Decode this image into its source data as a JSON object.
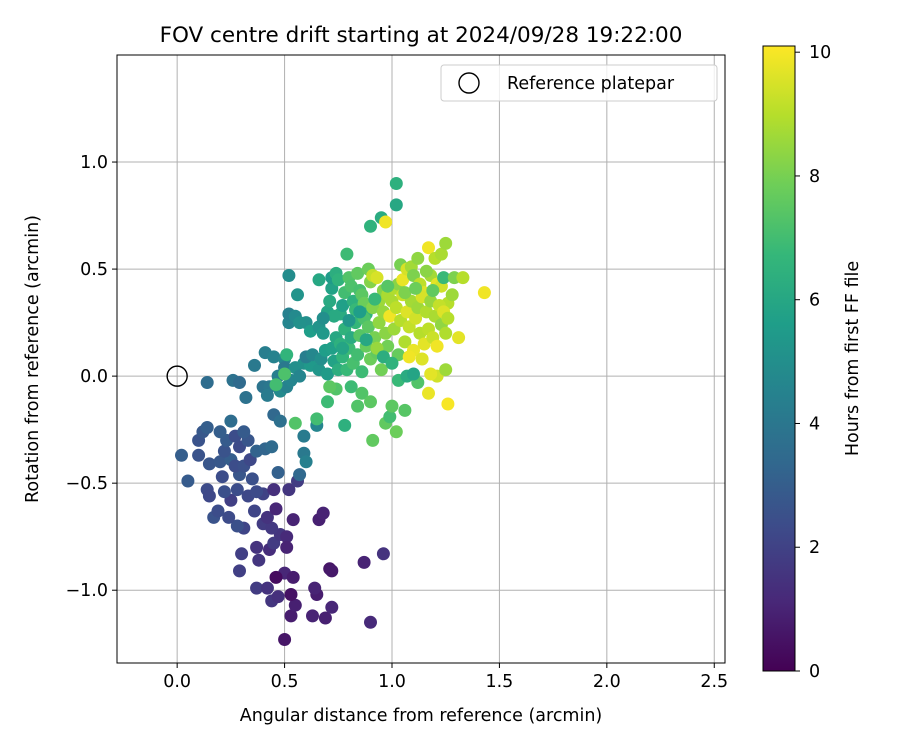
{
  "chart_data": {
    "type": "scatter",
    "title": "FOV centre drift starting at 2024/09/28 19:22:00",
    "xlabel": "Angular distance from reference (arcmin)",
    "ylabel": "Rotation from reference (arcmin)",
    "xlim": [
      -0.28,
      2.55
    ],
    "ylim": [
      -1.34,
      1.5
    ],
    "x_ticks": [
      0.0,
      0.5,
      1.0,
      1.5,
      2.0,
      2.5
    ],
    "x_tick_labels": [
      "0.0",
      "0.5",
      "1.0",
      "1.5",
      "2.0",
      "2.5"
    ],
    "y_ticks": [
      -1.0,
      -0.5,
      0.0,
      0.5,
      1.0
    ],
    "y_tick_labels": [
      "−1.0",
      "−0.5",
      "0.0",
      "0.5",
      "1.0"
    ],
    "grid": true,
    "legend": {
      "position": "top-right",
      "entries": [
        {
          "label": "Reference platepar",
          "marker": "open-circle"
        }
      ]
    },
    "reference_point": {
      "x": 0.0,
      "y": 0.0
    },
    "colorbar": {
      "label": "Hours from first FF file",
      "colormap": "viridis",
      "range": [
        0,
        10.1
      ],
      "ticks": [
        0,
        2,
        4,
        6,
        8,
        10
      ],
      "tick_labels": [
        "0",
        "2",
        "4",
        "6",
        "8",
        "10"
      ]
    },
    "points": [
      [
        0.5,
        -1.23,
        0.6
      ],
      [
        0.53,
        -1.12,
        0.8
      ],
      [
        0.63,
        -1.12,
        1.0
      ],
      [
        0.69,
        -1.13,
        0.9
      ],
      [
        0.9,
        -1.15,
        1.2
      ],
      [
        0.72,
        -1.08,
        1.1
      ],
      [
        0.55,
        -1.07,
        0.9
      ],
      [
        0.44,
        -1.05,
        1.6
      ],
      [
        0.47,
        -1.03,
        1.4
      ],
      [
        0.53,
        -1.02,
        0.5
      ],
      [
        0.65,
        -1.02,
        0.8
      ],
      [
        0.64,
        -0.99,
        1.0
      ],
      [
        0.37,
        -0.99,
        1.8
      ],
      [
        0.42,
        -0.99,
        1.5
      ],
      [
        0.29,
        -0.91,
        1.9
      ],
      [
        0.5,
        -0.92,
        1.1
      ],
      [
        0.46,
        -0.94,
        0.3
      ],
      [
        0.54,
        -0.94,
        0.8
      ],
      [
        0.71,
        -0.9,
        0.6
      ],
      [
        0.72,
        -0.91,
        0.7
      ],
      [
        0.87,
        -0.87,
        1.0
      ],
      [
        0.96,
        -0.83,
        1.5
      ],
      [
        0.3,
        -0.83,
        1.9
      ],
      [
        0.38,
        -0.86,
        1.6
      ],
      [
        0.43,
        -0.81,
        1.3
      ],
      [
        0.37,
        -0.8,
        1.5
      ],
      [
        0.45,
        -0.78,
        1.8
      ],
      [
        0.48,
        -0.74,
        1.6
      ],
      [
        0.51,
        -0.75,
        1.2
      ],
      [
        0.51,
        -0.8,
        1.0
      ],
      [
        0.31,
        -0.71,
        2.1
      ],
      [
        0.28,
        -0.7,
        2.5
      ],
      [
        0.24,
        -0.66,
        2.3
      ],
      [
        0.17,
        -0.66,
        2.6
      ],
      [
        0.19,
        -0.63,
        2.4
      ],
      [
        0.36,
        -0.63,
        2.1
      ],
      [
        0.4,
        -0.69,
        1.8
      ],
      [
        0.44,
        -0.71,
        1.7
      ],
      [
        0.42,
        -0.66,
        1.5
      ],
      [
        0.46,
        -0.62,
        1.1
      ],
      [
        0.54,
        -0.67,
        1.0
      ],
      [
        0.66,
        -0.67,
        0.9
      ],
      [
        0.68,
        -0.64,
        1.0
      ],
      [
        0.25,
        -0.58,
        1.9
      ],
      [
        0.14,
        -0.53,
        2.3
      ],
      [
        0.15,
        -0.56,
        2.2
      ],
      [
        0.22,
        -0.54,
        2.5
      ],
      [
        0.28,
        -0.53,
        2.4
      ],
      [
        0.33,
        -0.56,
        2.2
      ],
      [
        0.4,
        -0.55,
        2.0
      ],
      [
        0.37,
        -0.54,
        2.3
      ],
      [
        0.45,
        -0.53,
        1.4
      ],
      [
        0.52,
        -0.53,
        1.6
      ],
      [
        0.56,
        -0.49,
        1.8
      ],
      [
        0.05,
        -0.49,
        2.9
      ],
      [
        0.21,
        -0.47,
        2.4
      ],
      [
        0.29,
        -0.46,
        2.7
      ],
      [
        0.35,
        -0.48,
        2.5
      ],
      [
        0.47,
        -0.45,
        3.1
      ],
      [
        0.57,
        -0.46,
        3.4
      ],
      [
        0.02,
        -0.37,
        3.0
      ],
      [
        0.1,
        -0.37,
        2.6
      ],
      [
        0.15,
        -0.41,
        2.7
      ],
      [
        0.2,
        -0.4,
        2.8
      ],
      [
        0.25,
        -0.39,
        3.0
      ],
      [
        0.27,
        -0.42,
        2.4
      ],
      [
        0.31,
        -0.42,
        2.5
      ],
      [
        0.34,
        -0.39,
        2.2
      ],
      [
        0.22,
        -0.35,
        2.6
      ],
      [
        0.23,
        -0.3,
        2.9
      ],
      [
        0.29,
        -0.33,
        2.3
      ],
      [
        0.33,
        -0.3,
        2.7
      ],
      [
        0.37,
        -0.35,
        3.2
      ],
      [
        0.41,
        -0.34,
        3.3
      ],
      [
        0.44,
        -0.33,
        3.5
      ],
      [
        0.1,
        -0.3,
        2.6
      ],
      [
        0.12,
        -0.26,
        2.8
      ],
      [
        0.14,
        -0.24,
        3.0
      ],
      [
        0.2,
        -0.26,
        3.0
      ],
      [
        0.25,
        -0.21,
        3.6
      ],
      [
        0.27,
        -0.28,
        2.4
      ],
      [
        0.31,
        -0.26,
        2.9
      ],
      [
        0.45,
        -0.18,
        3.4
      ],
      [
        0.48,
        -0.21,
        3.7
      ],
      [
        0.59,
        -0.28,
        4.2
      ],
      [
        0.59,
        -0.36,
        4.1
      ],
      [
        0.6,
        -0.4,
        4.4
      ],
      [
        0.65,
        -0.23,
        4.6
      ],
      [
        0.14,
        -0.03,
        3.6
      ],
      [
        0.26,
        -0.02,
        3.8
      ],
      [
        0.29,
        -0.03,
        3.5
      ],
      [
        0.32,
        -0.1,
        3.8
      ],
      [
        0.36,
        0.05,
        4.1
      ],
      [
        0.41,
        0.11,
        4.3
      ],
      [
        0.4,
        -0.05,
        3.9
      ],
      [
        0.43,
        -0.05,
        4.0
      ],
      [
        0.42,
        -0.09,
        4.2
      ],
      [
        0.47,
        0.0,
        4.3
      ],
      [
        0.45,
        0.09,
        4.5
      ],
      [
        0.5,
        0.08,
        4.7
      ],
      [
        0.5,
        0.04,
        4.1
      ],
      [
        0.48,
        -0.07,
        4.8
      ],
      [
        0.51,
        -0.05,
        4.5
      ],
      [
        0.53,
        -0.02,
        4.6
      ],
      [
        0.55,
        0.04,
        5.0
      ],
      [
        0.59,
        0.06,
        5.1
      ],
      [
        0.57,
        0.0,
        4.6
      ],
      [
        0.62,
        0.05,
        5.4
      ],
      [
        0.46,
        -0.04,
        7.0
      ],
      [
        0.51,
        0.1,
        6.6
      ],
      [
        0.5,
        0.01,
        7.2
      ],
      [
        0.55,
        -0.22,
        7.3
      ],
      [
        0.65,
        -0.2,
        7.0
      ],
      [
        0.7,
        -0.12,
        6.9
      ],
      [
        0.74,
        -0.06,
        7.3
      ],
      [
        0.71,
        -0.05,
        7.5
      ],
      [
        0.78,
        -0.23,
        6.4
      ],
      [
        0.81,
        -0.05,
        6.9
      ],
      [
        0.86,
        -0.08,
        7.3
      ],
      [
        0.9,
        -0.12,
        7.5
      ],
      [
        0.84,
        -0.14,
        7.3
      ],
      [
        0.91,
        -0.3,
        7.6
      ],
      [
        0.97,
        -0.22,
        7.6
      ],
      [
        0.99,
        -0.19,
        7.0
      ],
      [
        1.0,
        -0.14,
        7.5
      ],
      [
        1.02,
        -0.26,
        7.8
      ],
      [
        1.06,
        -0.16,
        7.4
      ],
      [
        1.12,
        -0.03,
        7.3
      ],
      [
        1.03,
        -0.02,
        6.8
      ],
      [
        1.07,
        0.0,
        6.2
      ],
      [
        1.1,
        0.01,
        5.9
      ],
      [
        1.17,
        -0.08,
        9.8
      ],
      [
        1.26,
        -0.13,
        10.0
      ],
      [
        1.21,
        0.0,
        9.4
      ],
      [
        1.18,
        0.01,
        9.7
      ],
      [
        1.25,
        0.03,
        8.6
      ],
      [
        0.52,
        0.25,
        4.6
      ],
      [
        0.52,
        0.29,
        4.4
      ],
      [
        0.55,
        0.28,
        4.8
      ],
      [
        0.56,
        0.38,
        5.2
      ],
      [
        0.52,
        0.47,
        4.9
      ],
      [
        0.6,
        0.25,
        5.0
      ],
      [
        0.62,
        0.21,
        5.6
      ],
      [
        0.66,
        0.45,
        6.0
      ],
      [
        0.66,
        0.23,
        5.2
      ],
      [
        0.68,
        0.2,
        5.4
      ],
      [
        0.7,
        0.3,
        5.9
      ],
      [
        0.71,
        0.35,
        6.1
      ],
      [
        0.72,
        0.41,
        5.8
      ],
      [
        0.72,
        0.46,
        5.5
      ],
      [
        0.74,
        0.48,
        6.3
      ],
      [
        0.75,
        0.45,
        6.5
      ],
      [
        0.76,
        0.29,
        6.2
      ],
      [
        0.77,
        0.33,
        5.7
      ],
      [
        0.78,
        0.39,
        7.0
      ],
      [
        0.79,
        0.57,
        6.9
      ],
      [
        0.8,
        0.46,
        7.3
      ],
      [
        0.81,
        0.42,
        7.2
      ],
      [
        0.82,
        0.35,
        6.4
      ],
      [
        0.83,
        0.31,
        6.8
      ],
      [
        0.84,
        0.48,
        7.6
      ],
      [
        0.85,
        0.4,
        7.1
      ],
      [
        0.86,
        0.38,
        7.5
      ],
      [
        0.87,
        0.34,
        7.8
      ],
      [
        0.88,
        0.29,
        6.6
      ],
      [
        0.89,
        0.5,
        7.8
      ],
      [
        0.9,
        0.44,
        8.2
      ],
      [
        0.9,
        0.7,
        6.5
      ],
      [
        0.91,
        0.47,
        9.2
      ],
      [
        0.93,
        0.46,
        9.5
      ],
      [
        0.95,
        0.74,
        6.2
      ],
      [
        0.97,
        0.72,
        9.9
      ],
      [
        0.94,
        0.35,
        8.6
      ],
      [
        0.96,
        0.4,
        8.2
      ],
      [
        0.98,
        0.38,
        8.8
      ],
      [
        1.01,
        0.41,
        8.9
      ],
      [
        1.03,
        0.43,
        8.3
      ],
      [
        1.04,
        0.52,
        8.0
      ],
      [
        1.05,
        0.45,
        9.8
      ],
      [
        1.07,
        0.5,
        9.5
      ],
      [
        1.09,
        0.51,
        8.7
      ],
      [
        1.1,
        0.47,
        8.1
      ],
      [
        1.12,
        0.55,
        8.4
      ],
      [
        1.13,
        0.43,
        9.1
      ],
      [
        1.15,
        0.39,
        9.6
      ],
      [
        1.17,
        0.6,
        9.9
      ],
      [
        1.18,
        0.47,
        8.7
      ],
      [
        1.2,
        0.55,
        9.0
      ],
      [
        1.21,
        0.43,
        9.7
      ],
      [
        1.23,
        0.42,
        9.4
      ],
      [
        1.23,
        0.57,
        8.8
      ],
      [
        1.25,
        0.62,
        8.6
      ],
      [
        1.24,
        0.46,
        6.8
      ],
      [
        1.26,
        0.34,
        9.0
      ],
      [
        1.02,
        0.8,
        6.0
      ],
      [
        1.02,
        0.9,
        6.4
      ],
      [
        1.29,
        0.46,
        8.1
      ],
      [
        1.33,
        0.46,
        9.0
      ],
      [
        1.43,
        0.39,
        9.9
      ],
      [
        1.31,
        0.18,
        9.7
      ],
      [
        0.57,
        0.25,
        5.1
      ],
      [
        0.6,
        0.09,
        4.3
      ],
      [
        0.63,
        0.1,
        4.7
      ],
      [
        0.66,
        0.03,
        5.3
      ],
      [
        0.67,
        0.08,
        5.0
      ],
      [
        0.69,
        0.12,
        5.6
      ],
      [
        0.7,
        0.01,
        5.5
      ],
      [
        0.72,
        0.13,
        5.7
      ],
      [
        0.73,
        0.07,
        5.8
      ],
      [
        0.74,
        0.18,
        6.0
      ],
      [
        0.75,
        0.03,
        6.3
      ],
      [
        0.76,
        0.15,
        6.4
      ],
      [
        0.77,
        0.09,
        6.6
      ],
      [
        0.78,
        0.22,
        6.5
      ],
      [
        0.79,
        0.03,
        6.8
      ],
      [
        0.8,
        0.13,
        6.9
      ],
      [
        0.81,
        0.18,
        6.2
      ],
      [
        0.82,
        0.06,
        7.1
      ],
      [
        0.83,
        0.25,
        6.7
      ],
      [
        0.84,
        0.1,
        7.0
      ],
      [
        0.85,
        0.19,
        7.4
      ],
      [
        0.86,
        0.02,
        6.9
      ],
      [
        0.87,
        0.27,
        7.2
      ],
      [
        0.88,
        0.14,
        7.7
      ],
      [
        0.89,
        0.23,
        7.5
      ],
      [
        0.9,
        0.08,
        7.8
      ],
      [
        0.91,
        0.32,
        8.2
      ],
      [
        0.92,
        0.18,
        8.0
      ],
      [
        0.93,
        0.11,
        7.6
      ],
      [
        0.94,
        0.25,
        8.4
      ],
      [
        0.95,
        0.03,
        7.9
      ],
      [
        0.96,
        0.3,
        8.5
      ],
      [
        0.97,
        0.2,
        8.3
      ],
      [
        0.98,
        0.14,
        7.9
      ],
      [
        0.99,
        0.28,
        9.9
      ],
      [
        1.0,
        0.35,
        8.8
      ],
      [
        1.01,
        0.22,
        8.6
      ],
      [
        1.02,
        0.32,
        9.1
      ],
      [
        1.03,
        0.1,
        7.7
      ],
      [
        1.04,
        0.26,
        9.0
      ],
      [
        1.05,
        0.38,
        9.3
      ],
      [
        1.06,
        0.16,
        8.9
      ],
      [
        1.07,
        0.3,
        9.6
      ],
      [
        1.08,
        0.23,
        9.2
      ],
      [
        1.09,
        0.35,
        8.7
      ],
      [
        1.1,
        0.12,
        9.8
      ],
      [
        1.11,
        0.27,
        9.4
      ],
      [
        1.12,
        0.32,
        8.6
      ],
      [
        1.13,
        0.2,
        9.0
      ],
      [
        1.14,
        0.37,
        9.5
      ],
      [
        1.15,
        0.15,
        9.7
      ],
      [
        1.16,
        0.3,
        8.9
      ],
      [
        1.17,
        0.22,
        9.1
      ],
      [
        1.18,
        0.35,
        8.5
      ],
      [
        1.19,
        0.18,
        9.3
      ],
      [
        1.2,
        0.28,
        8.8
      ],
      [
        1.21,
        0.14,
        9.9
      ],
      [
        1.22,
        0.33,
        9.2
      ],
      [
        1.23,
        0.24,
        8.4
      ],
      [
        1.24,
        0.3,
        9.6
      ],
      [
        1.25,
        0.2,
        8.9
      ],
      [
        1.26,
        0.27,
        9.0
      ],
      [
        1.28,
        0.38,
        8.6
      ],
      [
        1.08,
        0.09,
        9.9
      ],
      [
        1.14,
        0.08,
        9.6
      ],
      [
        0.93,
        0.13,
        8.5
      ],
      [
        0.85,
        0.3,
        5.6
      ],
      [
        0.8,
        0.26,
        5.3
      ],
      [
        0.77,
        0.13,
        5.9
      ],
      [
        0.73,
        0.28,
        6.1
      ],
      [
        0.68,
        0.27,
        5.0
      ],
      [
        0.88,
        0.17,
        6.0
      ],
      [
        0.92,
        0.36,
        6.8
      ],
      [
        0.96,
        0.09,
        6.3
      ],
      [
        1.0,
        0.06,
        6.5
      ],
      [
        0.98,
        0.42,
        7.4
      ],
      [
        1.06,
        0.39,
        8.1
      ],
      [
        1.11,
        0.41,
        7.8
      ],
      [
        1.16,
        0.49,
        8.3
      ],
      [
        1.19,
        0.4,
        7.6
      ]
    ]
  }
}
